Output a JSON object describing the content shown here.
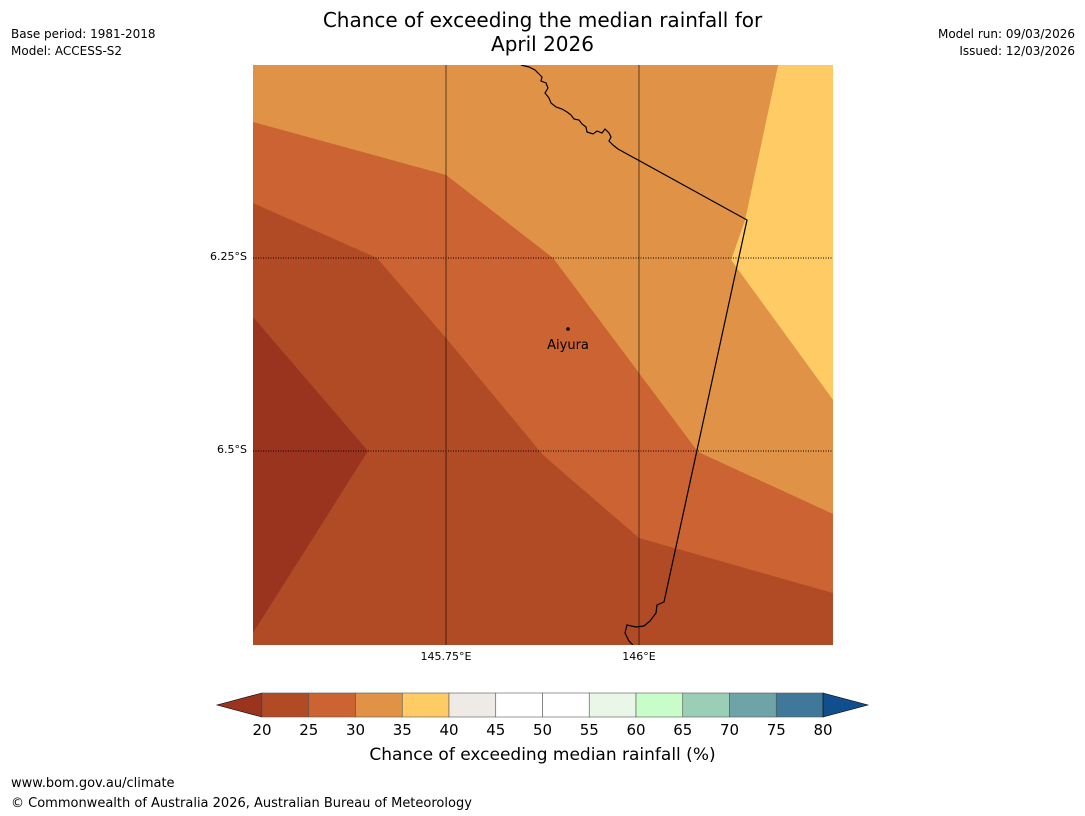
{
  "title": {
    "line1": "Chance of exceeding the median rainfall for",
    "line2": "April 2026"
  },
  "meta": {
    "base_period": "Base period: 1981-2018",
    "model": "Model: ACCESS-S2",
    "model_run": "Model run: 09/03/2026",
    "issued": "Issued: 12/03/2026"
  },
  "map": {
    "lat_labels": [
      "6.25°S",
      "6.5°S"
    ],
    "lon_labels": [
      "145.75°E",
      "146°E"
    ],
    "place": {
      "name": "Aiyura"
    },
    "band_colors": {
      "lt20": "#9a341f",
      "p20_25": "#b14b25",
      "p25_30": "#cb6432",
      "p30_35": "#e09346",
      "p35_40": "#fecb64"
    },
    "border_color": "#000000"
  },
  "colorbar": {
    "ticks": [
      "20",
      "25",
      "30",
      "35",
      "40",
      "45",
      "50",
      "55",
      "60",
      "65",
      "70",
      "75",
      "80"
    ],
    "colors": [
      "#b14b25",
      "#cb6432",
      "#e09346",
      "#fecb64",
      "#eeeae6",
      "#ffffff",
      "#ffffff",
      "#eaf6e8",
      "#c8fcc8",
      "#9bceb7",
      "#6ea4a7",
      "#3f7898"
    ],
    "low_color": "#9a341f",
    "high_color": "#114e8e",
    "label": "Chance of exceeding median rainfall (%)"
  },
  "footer": {
    "url": "www.bom.gov.au/climate",
    "copyright": "© Commonwealth of Australia 2026, Australian Bureau of Meteorology"
  }
}
